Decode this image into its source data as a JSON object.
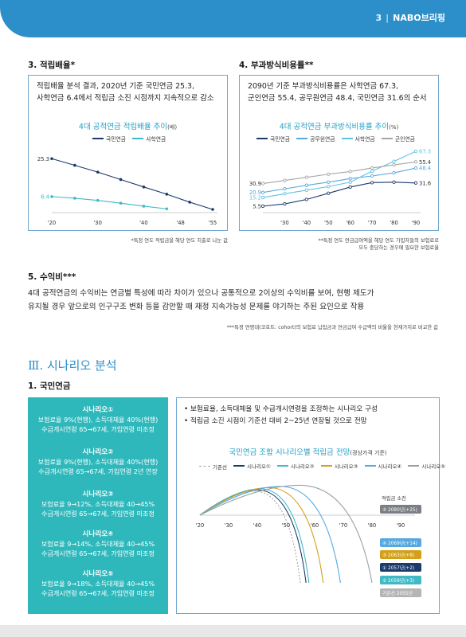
{
  "header": {
    "page_number": "3",
    "separator": "|",
    "brand": "NABO브리핑"
  },
  "section3": {
    "title": "3. 적립배율*",
    "summary_line1": "적립배율 분석 결과, 2020년 기준 국민연금 25.3,",
    "summary_line2": "사학연금 6.4에서 적립금 소진 시점까지 지속적으로 감소",
    "chart_title": "4대 공적연금 적립배율 추이",
    "chart_unit": "(배)",
    "legend": [
      "국민연금",
      "사학연금"
    ],
    "note": "*특정 연도 적립금을 해당 연도 지출로 나눈 값"
  },
  "section4": {
    "title": "4. 부과방식비용률**",
    "summary_line1": "2090년 기준 부과방식비용률은 사학연금 67.3,",
    "summary_line2": "군인연금 55.4, 공무원연금 48.4, 국민연금 31.6의 순서",
    "chart_title": "4대 공적연금 부과방식비용률 추이",
    "chart_unit": "(%)",
    "legend": [
      "국민연금",
      "공무원연금",
      "사학연금",
      "군인연금"
    ],
    "note_line1": "**특정 연도 연금급여액을 해당 연도 가입자들의 보험료로",
    "note_line2": "모두 충당하는 경우에 필요한  보험료율"
  },
  "section5": {
    "title": "5. 수익비***",
    "para_line1": "4대 공적연금의 수익비는 연금별 특성에 따라 차이가 있으나 공통적으로 2이상의 수익비를 보여, 현행 제도가",
    "para_line2": "유지될 경우 앞으로의 인구구조 변화 등을 감안할 때 재정 지속가능성 문제를 야기하는 주된 요인으로 작용",
    "note": "***특정 연령대(코호트: cohort)의 보험료 납입금과 연금급여 수급액의 비율을 현재가치로 비교한 값"
  },
  "part3": {
    "title": "Ⅲ. 시나리오 분석",
    "sub_title": "1. 국민연금"
  },
  "scenarios": [
    {
      "name": "시나리오①",
      "line1": "보험료율 9%(현행), 소득대체율 40%(현행)",
      "line2": "수급개시연령 65→67세, 가입연령 미조정"
    },
    {
      "name": "시나리오②",
      "line1": "보험료율 9%(현행), 소득대체율 40%(현행)",
      "line2": "수급개시연령 65→67세, 가입연령 2년 연장"
    },
    {
      "name": "시나리오③",
      "line1": "보험료율 9→12%, 소득대체율 40→45%",
      "line2": "수급개시연령 65→67세, 가입연령 미조정"
    },
    {
      "name": "시나리오④",
      "line1": "보험료율 9→14%, 소득대체율 40→45%",
      "line2": "수급개시연령 65→67세, 가입연령 미조정"
    },
    {
      "name": "시나리오⑤",
      "line1": "보험료율 9→18%, 소득대체율 40→45%",
      "line2": "수급개시연령 65→67세, 가입연령 미조정"
    }
  ],
  "scenario_box": {
    "bullet1": "• 보험료율, 소득대체율 및 수급개시연령을 조정하는 시나리오 구성",
    "bullet2": "• 적립금 소진 시점이 기준선 대비 2~25년 연장될 것으로 전망",
    "chart_title": "국민연금 조합 시나리오별 적립금 전망",
    "chart_unit": "(경상가격 기준)",
    "legend": [
      "기준선",
      "시나리오①",
      "시나리오②",
      "시나리오③",
      "시나리오④",
      "시나리오⑤"
    ],
    "depletion_label": "적립금 소진",
    "badges": [
      "⑤ 2080년(+25)",
      "④ 2069년(+14)",
      "③ 2063년(+8)",
      "① 2057년(+2)",
      "② 2058년(+3)",
      "기준선 2055년"
    ]
  },
  "colors": {
    "brand_blue": "#2d8fc9",
    "teal": "#2fb8bb",
    "navy": "#1d3a6b",
    "cyan": "#3fb9c6",
    "light_blue": "#58a8e0",
    "sky": "#5fc4e0",
    "gray": "#a5a5a5",
    "gold": "#d3a017"
  },
  "chart_data": [
    {
      "type": "line",
      "title": "4대 공적연금 적립배율 추이(배)",
      "x": [
        2020,
        2025,
        2030,
        2035,
        2040,
        2045,
        2050,
        2055
      ],
      "x_ticks": [
        "'20",
        "'30",
        "'40",
        "'48",
        "'55"
      ],
      "series": [
        {
          "name": "국민연금",
          "color": "#1d3a6b",
          "values": [
            25.3,
            22.0,
            18.6,
            14.9,
            11.2,
            7.6,
            3.6,
            0
          ]
        },
        {
          "name": "사학연금",
          "color": "#3fb9c6",
          "values": [
            6.4,
            5.6,
            4.5,
            3.1,
            1.6,
            0.3,
            null,
            null
          ]
        }
      ],
      "labels": [
        "25.3",
        "6.4"
      ],
      "xlim": [
        2020,
        2055
      ],
      "ylim": [
        0,
        27
      ]
    },
    {
      "type": "line",
      "title": "4대 공적연금 부과방식비용률 추이(%)",
      "x": [
        2020,
        2030,
        2040,
        2050,
        2060,
        2070,
        2080,
        2090
      ],
      "x_ticks": [
        "'30",
        "'40",
        "'50",
        "'60",
        "'70",
        "'80",
        "'90"
      ],
      "series": [
        {
          "name": "국민연금",
          "color": "#1d3a6b",
          "values": [
            5.5,
            8.0,
            13.0,
            20.0,
            27.0,
            32.0,
            32.5,
            31.6
          ]
        },
        {
          "name": "공무원연금",
          "color": "#58a8e0",
          "values": [
            20.9,
            25.0,
            29.0,
            32.5,
            36.5,
            39.5,
            43.0,
            48.4
          ]
        },
        {
          "name": "사학연금",
          "color": "#5fc4e0",
          "values": [
            15.2,
            19.5,
            23.5,
            27.5,
            32.5,
            45.0,
            56.0,
            67.3
          ]
        },
        {
          "name": "군인연금",
          "color": "#a5a5a5",
          "values": [
            30.9,
            34.5,
            38.0,
            41.5,
            44.5,
            48.5,
            52.0,
            55.4
          ]
        }
      ],
      "labels": [
        "30.9",
        "20.9",
        "15.2",
        "5.5",
        "67.3",
        "55.4",
        "48.4",
        "31.6"
      ],
      "xlim": [
        2020,
        2090
      ],
      "ylim": [
        0,
        70
      ]
    },
    {
      "type": "line",
      "title": "국민연금 조합 시나리오별 적립금 전망",
      "x_ticks": [
        "'20",
        "'30",
        "'40",
        "'50",
        "'60",
        "'70",
        "'80",
        "'90"
      ],
      "xlim": [
        2020,
        2095
      ],
      "series": [
        {
          "name": "기준선",
          "color": "#a5a5a5",
          "dashed": true,
          "peak_year": 2040,
          "depletion_year": 2055
        },
        {
          "name": "시나리오①",
          "color": "#1d3a6b",
          "peak_year": 2041,
          "depletion_year": 2057
        },
        {
          "name": "시나리오②",
          "color": "#3fb9c6",
          "peak_year": 2042,
          "depletion_year": 2058
        },
        {
          "name": "시나리오③",
          "color": "#d3a017",
          "peak_year": 2045,
          "depletion_year": 2063
        },
        {
          "name": "시나리오④",
          "color": "#58a8e0",
          "peak_year": 2049,
          "depletion_year": 2069
        },
        {
          "name": "시나리오⑤",
          "color": "#9aa0a6",
          "peak_year": 2056,
          "depletion_year": 2080
        }
      ]
    }
  ]
}
